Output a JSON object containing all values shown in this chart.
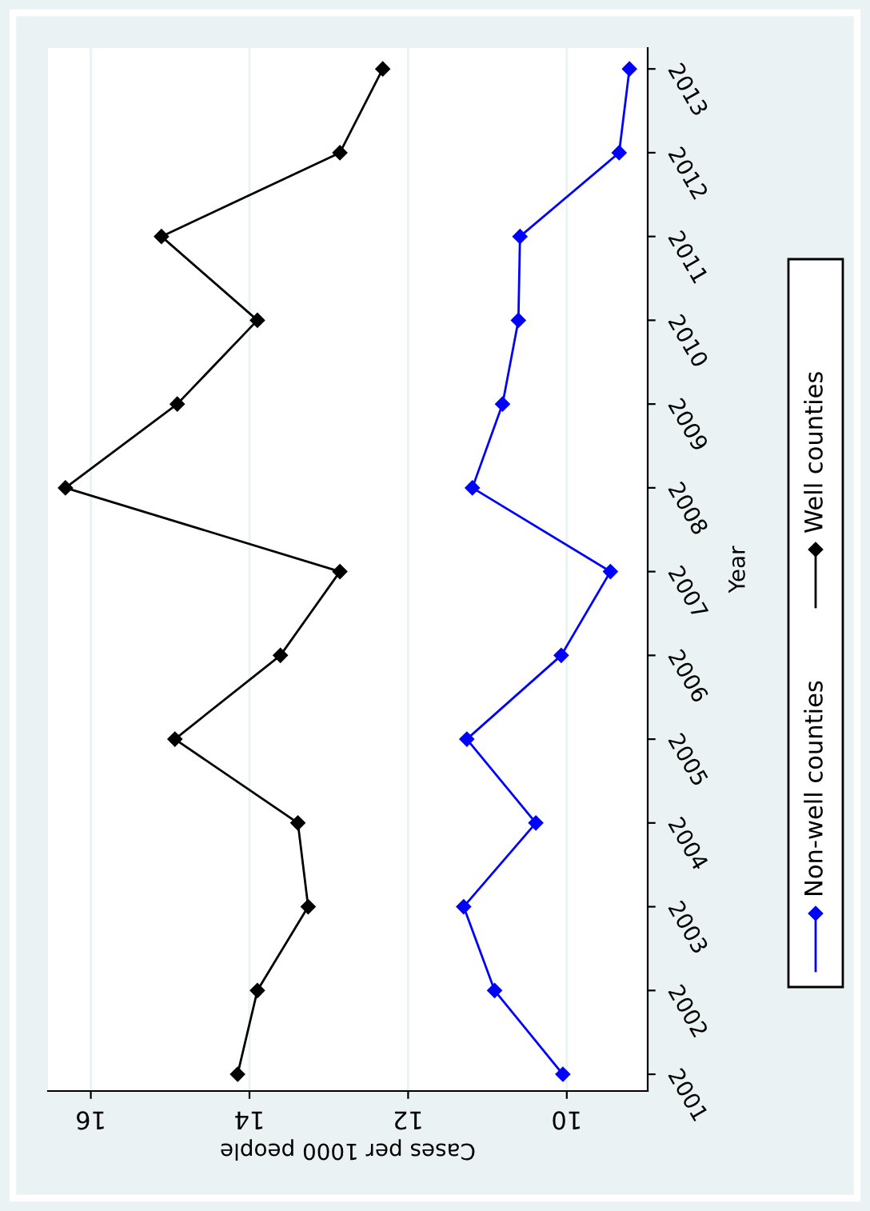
{
  "chart_data": {
    "type": "line",
    "xlabel": "Cases per 1000 people",
    "ylabel": "Year",
    "xlim": [
      16.54,
      8.98
    ],
    "xticks": [
      16,
      14,
      12,
      10
    ],
    "ylim": [
      2000.8,
      2013.25
    ],
    "yticks": [
      2001,
      2002,
      2003,
      2004,
      2005,
      2006,
      2007,
      2008,
      2009,
      2010,
      2011,
      2012,
      2013
    ],
    "series": [
      {
        "name": "Well counties",
        "color": "#000000",
        "x": [
          14.15,
          13.9,
          13.26,
          13.39,
          14.94,
          13.61,
          12.86,
          16.32,
          14.91,
          13.9,
          15.11,
          12.86,
          12.32
        ],
        "values": [
          2001,
          2002,
          2003,
          2004,
          2005,
          2006,
          2007,
          2008,
          2009,
          2010,
          2011,
          2012,
          2013
        ]
      },
      {
        "name": "Non-well counties",
        "color": "#0000ff",
        "x": [
          10.05,
          10.91,
          11.3,
          10.39,
          11.26,
          10.07,
          9.45,
          11.19,
          10.81,
          10.61,
          10.59,
          9.34,
          9.21
        ],
        "values": [
          2001,
          2002,
          2003,
          2004,
          2005,
          2006,
          2007,
          2008,
          2009,
          2010,
          2011,
          2012,
          2013
        ]
      }
    ],
    "marker": "diamond",
    "line_style": "solid",
    "grid": "x",
    "legend": "right"
  }
}
